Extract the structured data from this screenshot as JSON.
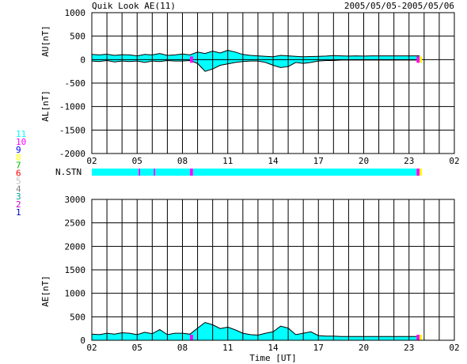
{
  "header": {
    "title": "Quik Look AE(11)",
    "date_range": "2005/05/05-2005/05/06"
  },
  "colors": {
    "fill": "#00ffff",
    "magenta": "#ff00ff",
    "yellow": "#ffff00",
    "blue": "#0000ff",
    "grid": "#000000"
  },
  "legend": {
    "numbers": [
      {
        "label": "11",
        "color": "#00ffff"
      },
      {
        "label": "10",
        "color": "#ff00ff"
      },
      {
        "label": "9",
        "color": "#0000ff"
      },
      {
        "label": "8",
        "color": "#ffff00"
      },
      {
        "label": "7",
        "color": "#00c000"
      },
      {
        "label": "6",
        "color": "#ff0000"
      },
      {
        "label": "5",
        "color": "#c0c0c0"
      },
      {
        "label": "4",
        "color": "#808080"
      },
      {
        "label": "3",
        "color": "#00a0a0"
      },
      {
        "label": "2",
        "color": "#c000c0"
      },
      {
        "label": "1",
        "color": "#0000c0"
      }
    ]
  },
  "chart_data": [
    {
      "type": "area",
      "title": "AU / AL",
      "ylabel_top": "AU[nT]",
      "ylabel_bottom": "AL[nT]",
      "ylim": [
        -2000,
        1000
      ],
      "yticks": [
        "1000",
        "500",
        "0",
        "-500",
        "-1000",
        "-1500",
        "-2000"
      ],
      "xticks": [
        "02",
        "05",
        "08",
        "11",
        "14",
        "17",
        "20",
        "23",
        "02"
      ],
      "x_unit": "hours from 02 UT",
      "au": {
        "x": [
          0,
          0.5,
          1,
          1.5,
          2,
          2.5,
          3,
          3.5,
          4,
          4.5,
          5,
          5.5,
          6,
          6.5,
          7,
          7.5,
          8,
          8.5,
          9,
          9.5,
          10,
          10.5,
          11,
          11.5,
          12,
          12.5,
          13,
          13.5,
          14,
          14.5,
          15,
          15.5,
          16,
          16.5,
          17,
          17.5,
          18,
          18.5,
          19,
          19.5,
          20,
          20.5,
          21,
          21.5,
          21.7
        ],
        "values": [
          110,
          100,
          115,
          90,
          105,
          100,
          80,
          110,
          100,
          130,
          90,
          100,
          120,
          100,
          160,
          130,
          180,
          140,
          200,
          160,
          110,
          90,
          80,
          70,
          60,
          90,
          80,
          70,
          60,
          65,
          70,
          75,
          85,
          80,
          75,
          80,
          75,
          80,
          80,
          80,
          80,
          80,
          80,
          80,
          80
        ]
      },
      "al": {
        "x": [
          0,
          0.5,
          1,
          1.5,
          2,
          2.5,
          3,
          3.5,
          4,
          4.5,
          5,
          5.5,
          6,
          6.5,
          7,
          7.5,
          8,
          8.5,
          9,
          9.5,
          10,
          10.5,
          11,
          11.5,
          12,
          12.5,
          13,
          13.5,
          14,
          14.5,
          15,
          15.5,
          16,
          16.5,
          17,
          17.5,
          18,
          18.5,
          19,
          19.5,
          20,
          20.5,
          21,
          21.5,
          21.7
        ],
        "values": [
          -30,
          -40,
          -20,
          -50,
          -30,
          -40,
          -30,
          -60,
          -30,
          -40,
          -20,
          -30,
          -30,
          -20,
          -80,
          -250,
          -200,
          -120,
          -90,
          -60,
          -40,
          -30,
          -30,
          -60,
          -120,
          -170,
          -150,
          -60,
          -80,
          -60,
          -30,
          -20,
          -20,
          -10,
          -10,
          -10,
          -10,
          -10,
          -10,
          -10,
          -10,
          -10,
          -10,
          -10,
          -10
        ]
      }
    },
    {
      "type": "bar",
      "title": "N.STN",
      "label": "N.STN",
      "segments": [
        {
          "x0": 0,
          "x1": 3.1,
          "station_count": "11"
        },
        {
          "x0": 3.1,
          "x1": 3.2,
          "station_count": "10"
        },
        {
          "x0": 3.2,
          "x1": 4.1,
          "station_count": "11"
        },
        {
          "x0": 4.1,
          "x1": 4.2,
          "station_count": "10"
        },
        {
          "x0": 4.2,
          "x1": 6.5,
          "station_count": "11"
        },
        {
          "x0": 6.5,
          "x1": 6.7,
          "station_count": "10"
        },
        {
          "x0": 6.7,
          "x1": 21.5,
          "station_count": "11"
        },
        {
          "x0": 21.5,
          "x1": 21.7,
          "station_count": "10"
        },
        {
          "x0": 21.7,
          "x1": 21.85,
          "station_count": "8"
        }
      ]
    },
    {
      "type": "area",
      "title": "AE",
      "ylabel": "AE[nT]",
      "xlabel": "Time [UT]",
      "ylim": [
        0,
        3000
      ],
      "yticks": [
        "3000",
        "2500",
        "2000",
        "1500",
        "1000",
        "500",
        "0"
      ],
      "xticks": [
        "02",
        "05",
        "08",
        "11",
        "14",
        "17",
        "20",
        "23",
        "02"
      ],
      "x_unit": "hours from 02 UT",
      "x": [
        0,
        0.5,
        1,
        1.5,
        2,
        2.5,
        3,
        3.5,
        4,
        4.5,
        5,
        5.5,
        6,
        6.5,
        7,
        7.5,
        8,
        8.5,
        9,
        9.5,
        10,
        10.5,
        11,
        11.5,
        12,
        12.5,
        13,
        13.5,
        14,
        14.5,
        15,
        15.5,
        16,
        16.5,
        17,
        17.5,
        18,
        18.5,
        19,
        19.5,
        20,
        20.5,
        21,
        21.5,
        21.7
      ],
      "values": [
        130,
        120,
        150,
        130,
        160,
        150,
        120,
        170,
        140,
        230,
        120,
        150,
        150,
        130,
        260,
        380,
        330,
        250,
        280,
        220,
        150,
        120,
        110,
        150,
        180,
        300,
        260,
        120,
        150,
        180,
        100,
        90,
        90,
        80,
        80,
        80,
        80,
        80,
        80,
        80,
        80,
        80,
        80,
        80,
        80
      ],
      "markers": [
        {
          "x": 6.5,
          "x1": 6.7,
          "color_key": "magenta"
        },
        {
          "x": 21.5,
          "x1": 21.7,
          "color_key": "magenta"
        },
        {
          "x": 21.7,
          "x1": 21.85,
          "color_key": "yellow"
        }
      ]
    }
  ]
}
